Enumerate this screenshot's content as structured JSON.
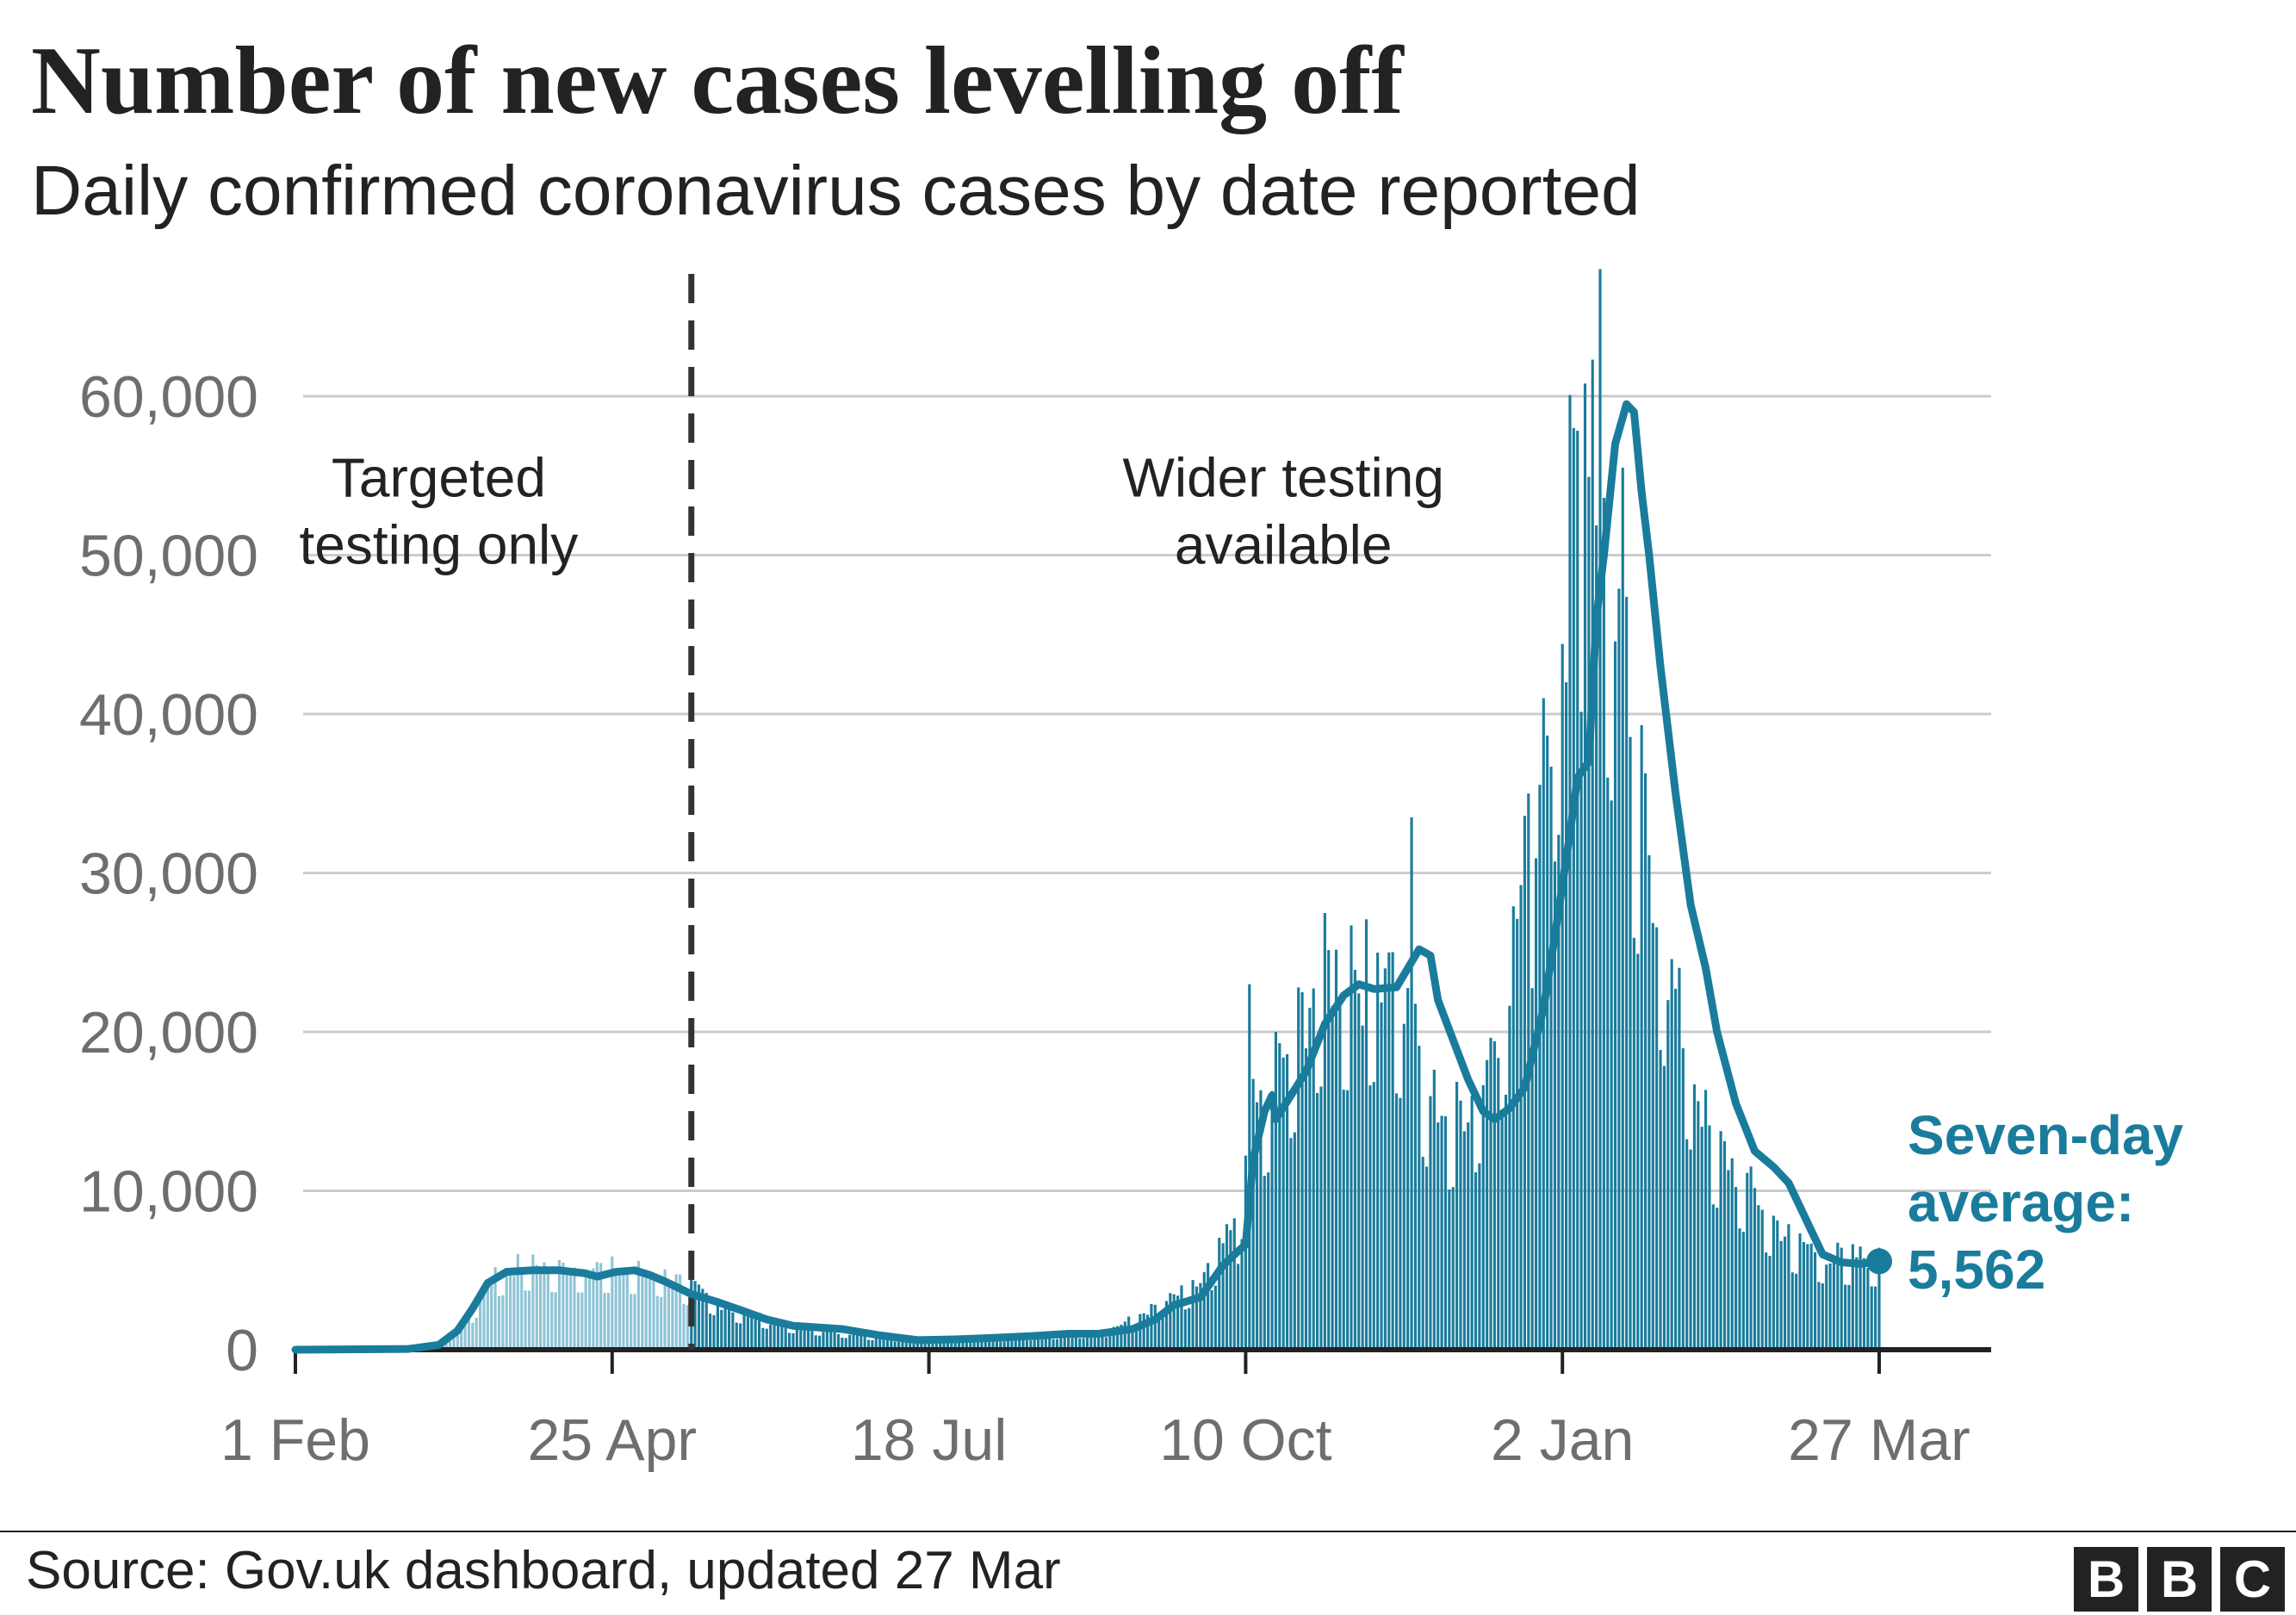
{
  "title": "Number of new cases levelling off",
  "subtitle": "Daily confirmed coronavirus cases by date reported",
  "source": "Source: Gov.uk dashboard, updated 27 Mar",
  "logo": [
    "B",
    "B",
    "C"
  ],
  "colors": {
    "line": "#1a7c9c",
    "bar": "#1a7c9c",
    "bar_early": "#8fc4d6",
    "grid": "#cccccc",
    "axis": "#222222",
    "tick_text": "#6e6e6e",
    "text": "#222222"
  },
  "chart_data": {
    "type": "bar",
    "title": "Number of new cases levelling off",
    "subtitle": "Daily confirmed coronavirus cases by date reported",
    "xlabel": "",
    "ylabel": "",
    "ylim": [
      0,
      60000
    ],
    "yticks": [
      0,
      10000,
      20000,
      30000,
      40000,
      50000,
      60000
    ],
    "ytick_labels": [
      "0",
      "10,000",
      "20,000",
      "30,000",
      "40,000",
      "50,000",
      "60,000"
    ],
    "x_start": "2020-02-01",
    "x_end": "2021-03-27",
    "xticks": [
      {
        "day": 0,
        "label": "1 Feb"
      },
      {
        "day": 84,
        "label": "25 Apr"
      },
      {
        "day": 168,
        "label": "18 Jul"
      },
      {
        "day": 252,
        "label": "10 Oct"
      },
      {
        "day": 336,
        "label": "2 Jan"
      },
      {
        "day": 420,
        "label": "27 Mar"
      }
    ],
    "grid": true,
    "divider": {
      "day": 105,
      "style": "dashed"
    },
    "annotations": [
      {
        "lines": [
          "Targeted",
          "testing only"
        ],
        "day": 38,
        "value": 55000
      },
      {
        "lines": [
          "Wider testing",
          "available"
        ],
        "day": 262,
        "value": 55000
      }
    ],
    "series": [
      {
        "name": "Daily cases",
        "style": "bars",
        "keyframes": [
          [
            0,
            0
          ],
          [
            30,
            30
          ],
          [
            38,
            200
          ],
          [
            45,
            1500
          ],
          [
            52,
            4500
          ],
          [
            60,
            5200
          ],
          [
            70,
            5000
          ],
          [
            80,
            5000
          ],
          [
            95,
            4800
          ],
          [
            105,
            3800
          ],
          [
            115,
            2500
          ],
          [
            130,
            1500
          ],
          [
            150,
            900
          ],
          [
            165,
            600
          ],
          [
            185,
            700
          ],
          [
            200,
            900
          ],
          [
            215,
            1100
          ],
          [
            230,
            2800
          ],
          [
            240,
            4000
          ],
          [
            245,
            6000
          ],
          [
            250,
            7500
          ],
          [
            253,
            14000
          ],
          [
            258,
            15500
          ],
          [
            265,
            19000
          ],
          [
            272,
            23000
          ],
          [
            283,
            22500
          ],
          [
            288,
            24000
          ],
          [
            293,
            22000
          ],
          [
            300,
            16000
          ],
          [
            306,
            14000
          ],
          [
            313,
            15500
          ],
          [
            320,
            21000
          ],
          [
            327,
            30000
          ],
          [
            332,
            38000
          ],
          [
            338,
            52000
          ],
          [
            342,
            57000
          ],
          [
            348,
            50000
          ],
          [
            355,
            36000
          ],
          [
            365,
            22000
          ],
          [
            375,
            13000
          ],
          [
            385,
            10000
          ],
          [
            395,
            7000
          ],
          [
            405,
            5800
          ],
          [
            420,
            5500
          ]
        ]
      },
      {
        "name": "Seven-day average",
        "style": "line",
        "points": [
          [
            0,
            0
          ],
          [
            30,
            50
          ],
          [
            38,
            300
          ],
          [
            43,
            1200
          ],
          [
            47,
            2600
          ],
          [
            51,
            4200
          ],
          [
            56,
            4900
          ],
          [
            63,
            5000
          ],
          [
            70,
            5000
          ],
          [
            77,
            4800
          ],
          [
            80,
            4600
          ],
          [
            85,
            4900
          ],
          [
            90,
            5000
          ],
          [
            94,
            4700
          ],
          [
            98,
            4300
          ],
          [
            105,
            3500
          ],
          [
            112,
            3000
          ],
          [
            118,
            2500
          ],
          [
            125,
            1900
          ],
          [
            132,
            1500
          ],
          [
            145,
            1300
          ],
          [
            155,
            900
          ],
          [
            165,
            600
          ],
          [
            175,
            650
          ],
          [
            185,
            750
          ],
          [
            195,
            850
          ],
          [
            205,
            1000
          ],
          [
            213,
            1000
          ],
          [
            222,
            1300
          ],
          [
            228,
            1900
          ],
          [
            233,
            2800
          ],
          [
            240,
            3300
          ],
          [
            246,
            5300
          ],
          [
            250,
            6200
          ],
          [
            252,
            6600
          ],
          [
            254,
            12000
          ],
          [
            257,
            15000
          ],
          [
            259,
            16000
          ],
          [
            260,
            14500
          ],
          [
            264,
            16000
          ],
          [
            268,
            17500
          ],
          [
            273,
            20500
          ],
          [
            278,
            22300
          ],
          [
            282,
            23000
          ],
          [
            286,
            22700
          ],
          [
            292,
            22800
          ],
          [
            295,
            24000
          ],
          [
            298,
            25200
          ],
          [
            301,
            24800
          ],
          [
            303,
            22000
          ],
          [
            307,
            19500
          ],
          [
            311,
            17000
          ],
          [
            315,
            15000
          ],
          [
            318,
            14500
          ],
          [
            322,
            15200
          ],
          [
            326,
            16500
          ],
          [
            331,
            21500
          ],
          [
            334,
            26000
          ],
          [
            338,
            32500
          ],
          [
            340,
            36000
          ],
          [
            343,
            37000
          ],
          [
            345,
            46000
          ],
          [
            347,
            50000
          ],
          [
            350,
            57000
          ],
          [
            353,
            59500
          ],
          [
            355,
            59000
          ],
          [
            357,
            54000
          ],
          [
            359,
            50000
          ],
          [
            362,
            43000
          ],
          [
            366,
            35000
          ],
          [
            370,
            28000
          ],
          [
            374,
            24000
          ],
          [
            377,
            20000
          ],
          [
            382,
            15500
          ],
          [
            387,
            12500
          ],
          [
            392,
            11500
          ],
          [
            396,
            10500
          ],
          [
            400,
            8500
          ],
          [
            405,
            6000
          ],
          [
            410,
            5500
          ],
          [
            415,
            5400
          ],
          [
            420,
            5562
          ]
        ]
      }
    ],
    "end_label": {
      "lines": [
        "Seven-day",
        "average:",
        "5,562"
      ],
      "value": 5562,
      "day": 420
    }
  }
}
